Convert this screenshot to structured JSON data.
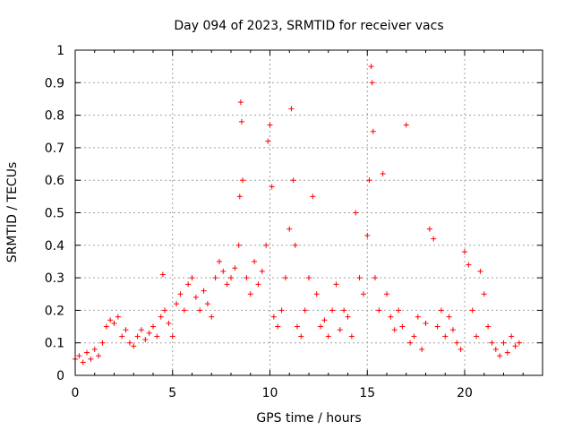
{
  "chart_data": {
    "type": "scatter",
    "title": "Day 094 of 2023, SRMTID for receiver vacs",
    "xlabel": "GPS time / hours",
    "ylabel": "SRMTID / TECUs",
    "xlim": [
      0,
      24
    ],
    "ylim": [
      0,
      1
    ],
    "xticks": [
      "0",
      "5",
      "10",
      "15",
      "20"
    ],
    "yticks": [
      "0",
      "0.1",
      "0.2",
      "0.3",
      "0.4",
      "0.5",
      "0.6",
      "0.7",
      "0.8",
      "0.9",
      "1"
    ],
    "grid": true,
    "marker": "+",
    "color": "#ff0000",
    "series": [
      {
        "name": "SRMTID",
        "x": [
          0.0,
          0.2,
          0.4,
          0.6,
          0.8,
          1.0,
          1.2,
          1.4,
          1.6,
          1.8,
          2.0,
          2.2,
          2.4,
          2.6,
          2.8,
          3.0,
          3.2,
          3.4,
          3.6,
          3.8,
          4.0,
          4.2,
          4.4,
          4.5,
          4.6,
          4.8,
          5.0,
          5.2,
          5.4,
          5.6,
          5.8,
          6.0,
          6.2,
          6.4,
          6.6,
          6.8,
          7.0,
          7.2,
          7.4,
          7.6,
          7.8,
          8.0,
          8.2,
          8.4,
          8.45,
          8.5,
          8.55,
          8.6,
          8.8,
          9.0,
          9.2,
          9.4,
          9.6,
          9.8,
          9.9,
          10.0,
          10.1,
          10.2,
          10.4,
          10.6,
          10.8,
          11.0,
          11.1,
          11.2,
          11.3,
          11.4,
          11.6,
          11.8,
          12.0,
          12.2,
          12.4,
          12.6,
          12.8,
          13.0,
          13.2,
          13.4,
          13.6,
          13.8,
          14.0,
          14.2,
          14.4,
          14.6,
          14.8,
          15.0,
          15.1,
          15.2,
          15.25,
          15.3,
          15.4,
          15.6,
          15.8,
          16.0,
          16.2,
          16.4,
          16.6,
          16.8,
          17.0,
          17.2,
          17.4,
          17.6,
          17.8,
          18.0,
          18.2,
          18.4,
          18.6,
          18.8,
          19.0,
          19.2,
          19.4,
          19.6,
          19.8,
          20.0,
          20.2,
          20.4,
          20.6,
          20.8,
          21.0,
          21.2,
          21.4,
          21.6,
          21.8,
          22.0,
          22.2,
          22.4,
          22.6,
          22.8
        ],
        "y": [
          0.05,
          0.06,
          0.04,
          0.07,
          0.05,
          0.08,
          0.06,
          0.1,
          0.15,
          0.17,
          0.16,
          0.18,
          0.12,
          0.14,
          0.1,
          0.09,
          0.12,
          0.14,
          0.11,
          0.13,
          0.15,
          0.12,
          0.18,
          0.31,
          0.2,
          0.16,
          0.12,
          0.22,
          0.25,
          0.2,
          0.28,
          0.3,
          0.24,
          0.2,
          0.26,
          0.22,
          0.18,
          0.3,
          0.35,
          0.32,
          0.28,
          0.3,
          0.33,
          0.4,
          0.55,
          0.84,
          0.78,
          0.6,
          0.3,
          0.25,
          0.35,
          0.28,
          0.32,
          0.4,
          0.72,
          0.77,
          0.58,
          0.18,
          0.15,
          0.2,
          0.3,
          0.45,
          0.82,
          0.6,
          0.4,
          0.15,
          0.12,
          0.2,
          0.3,
          0.55,
          0.25,
          0.15,
          0.17,
          0.12,
          0.2,
          0.28,
          0.14,
          0.2,
          0.18,
          0.12,
          0.5,
          0.3,
          0.25,
          0.43,
          0.6,
          0.95,
          0.9,
          0.75,
          0.3,
          0.2,
          0.62,
          0.25,
          0.18,
          0.14,
          0.2,
          0.15,
          0.77,
          0.1,
          0.12,
          0.18,
          0.08,
          0.16,
          0.45,
          0.42,
          0.15,
          0.2,
          0.12,
          0.18,
          0.14,
          0.1,
          0.08,
          0.38,
          0.34,
          0.2,
          0.12,
          0.32,
          0.25,
          0.15,
          0.1,
          0.08,
          0.06,
          0.1,
          0.07,
          0.12,
          0.09,
          0.1
        ]
      }
    ]
  }
}
